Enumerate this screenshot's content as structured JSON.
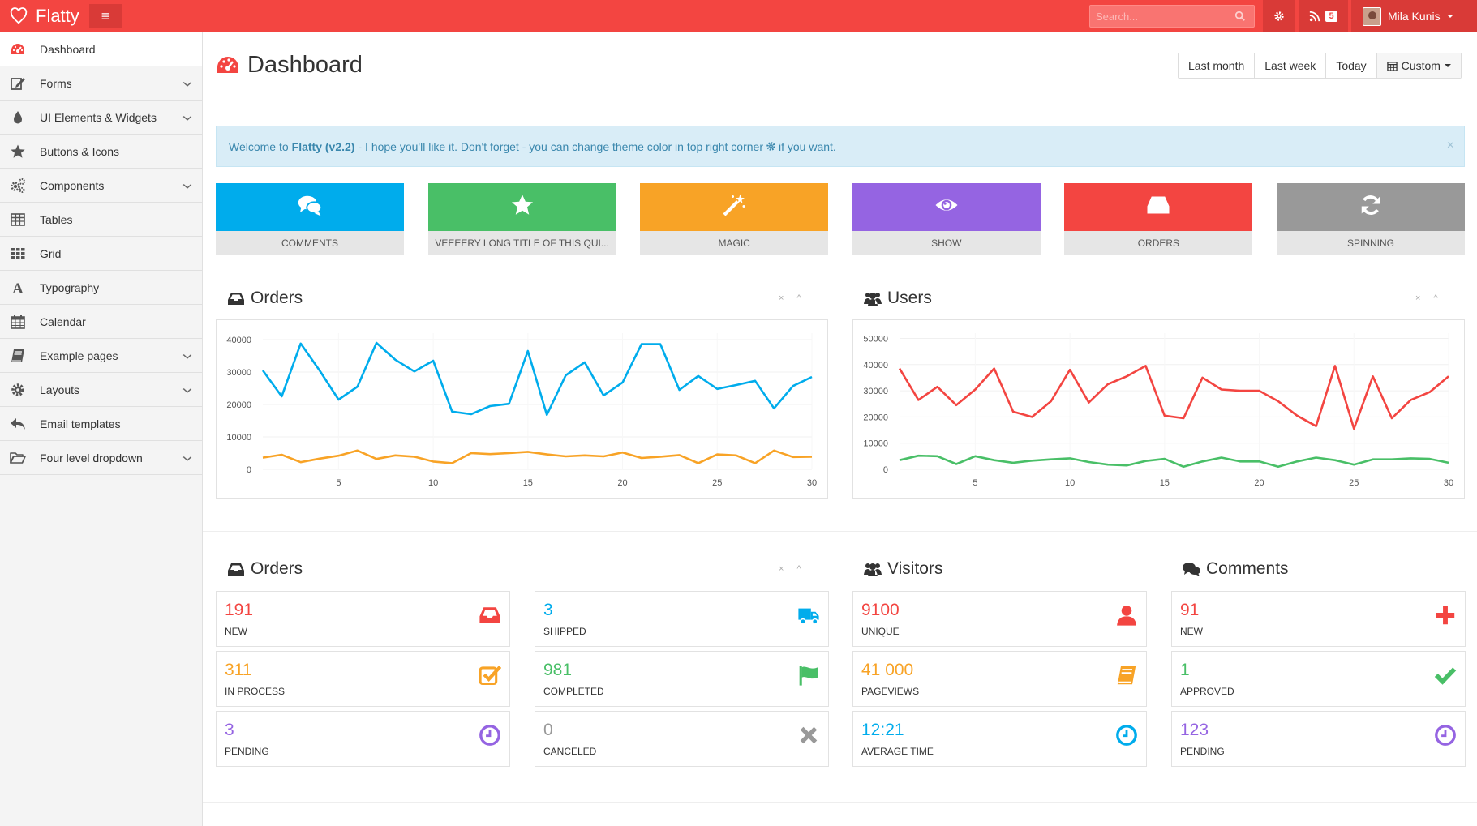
{
  "brand": {
    "name": "Flatty"
  },
  "topbar": {
    "menu_icon": "hamburger-icon",
    "search_placeholder": "Search...",
    "notifications_count": "5",
    "user_name": "Mila Kunis"
  },
  "sidebar": {
    "items": [
      {
        "label": "Dashboard",
        "icon": "dashboard-icon",
        "has_children": false
      },
      {
        "label": "Forms",
        "icon": "edit-icon",
        "has_children": true
      },
      {
        "label": "UI Elements & Widgets",
        "icon": "tint-icon",
        "has_children": true
      },
      {
        "label": "Buttons & Icons",
        "icon": "star-icon",
        "has_children": false
      },
      {
        "label": "Components",
        "icon": "cogs-icon",
        "has_children": true
      },
      {
        "label": "Tables",
        "icon": "table-icon",
        "has_children": false
      },
      {
        "label": "Grid",
        "icon": "grid-icon",
        "has_children": false
      },
      {
        "label": "Typography",
        "icon": "font-icon",
        "has_children": false
      },
      {
        "label": "Calendar",
        "icon": "calendar-icon",
        "has_children": false
      },
      {
        "label": "Example pages",
        "icon": "book-icon",
        "has_children": true
      },
      {
        "label": "Layouts",
        "icon": "cog-icon",
        "has_children": true
      },
      {
        "label": "Email templates",
        "icon": "reply-icon",
        "has_children": false
      },
      {
        "label": "Four level dropdown",
        "icon": "folder-open-icon",
        "has_children": true
      }
    ]
  },
  "header": {
    "title": "Dashboard",
    "ranges": [
      "Last month",
      "Last week",
      "Today",
      "Custom"
    ]
  },
  "alert": {
    "prefix": "Welcome to",
    "product": "Flatty (v2.2)",
    "message": "- I hope you'll like it. Don't forget - you can change theme color in top right corner",
    "suffix": "if you want.",
    "close": "×"
  },
  "tiles": [
    {
      "label": "COMMENTS",
      "color": "#00acec",
      "icon": "comments-icon"
    },
    {
      "label": "VEEEERY LONG TITLE OF THIS QUI...",
      "color": "#49bf67",
      "icon": "star-icon"
    },
    {
      "label": "MAGIC",
      "color": "#f8a326",
      "icon": "magic-icon"
    },
    {
      "label": "SHOW",
      "color": "#9564e2",
      "icon": "eye-icon"
    },
    {
      "label": "ORDERS",
      "color": "#f34541",
      "icon": "inbox-icon"
    },
    {
      "label": "SPINNING",
      "color": "#999999",
      "icon": "refresh-icon"
    }
  ],
  "charts_section": {
    "orders_title": "Orders",
    "users_title": "Users",
    "tools": [
      "×",
      "^"
    ]
  },
  "chart_data": [
    {
      "type": "line",
      "title": "Orders",
      "x": [
        1,
        2,
        3,
        4,
        5,
        6,
        7,
        8,
        9,
        10,
        11,
        12,
        13,
        14,
        15,
        16,
        17,
        18,
        19,
        20,
        21,
        22,
        23,
        24,
        25,
        26,
        27,
        28,
        29,
        30
      ],
      "x_ticks": [
        5,
        10,
        15,
        20,
        25,
        30
      ],
      "y_ticks": [
        0,
        10000,
        20000,
        30000,
        40000
      ],
      "ylim": [
        0,
        42000
      ],
      "series": [
        {
          "color": "#00acec",
          "values": [
            30500,
            22500,
            38800,
            30500,
            21500,
            25500,
            39000,
            33800,
            30200,
            33500,
            17800,
            17000,
            19500,
            20200,
            36500,
            16800,
            29000,
            33000,
            22800,
            26800,
            38600,
            38600,
            24500,
            28800,
            24800,
            26000,
            27300,
            18800,
            25700,
            28500
          ]
        },
        {
          "color": "#f8a326",
          "values": [
            3600,
            4500,
            2200,
            3300,
            4200,
            5800,
            3200,
            4300,
            3900,
            2400,
            1900,
            5000,
            4700,
            5000,
            5400,
            4600,
            4000,
            4300,
            4000,
            5200,
            3500,
            3900,
            4400,
            1900,
            4600,
            4300,
            1900,
            5800,
            3800,
            3900
          ]
        }
      ]
    },
    {
      "type": "line",
      "title": "Users",
      "x": [
        1,
        2,
        3,
        4,
        5,
        6,
        7,
        8,
        9,
        10,
        11,
        12,
        13,
        14,
        15,
        16,
        17,
        18,
        19,
        20,
        21,
        22,
        23,
        24,
        25,
        26,
        27,
        28,
        29,
        30
      ],
      "x_ticks": [
        5,
        10,
        15,
        20,
        25,
        30
      ],
      "y_ticks": [
        0,
        10000,
        20000,
        30000,
        40000,
        50000
      ],
      "ylim": [
        0,
        52000
      ],
      "series": [
        {
          "color": "#f34541",
          "values": [
            38500,
            26500,
            31500,
            24500,
            30500,
            38500,
            22000,
            20000,
            26000,
            38000,
            25500,
            32500,
            35500,
            39500,
            20500,
            19500,
            35000,
            30500,
            30000,
            30000,
            26000,
            20500,
            16500,
            39500,
            15500,
            35500,
            19500,
            26500,
            29500,
            35500
          ]
        },
        {
          "color": "#49bf67",
          "values": [
            3500,
            5200,
            5000,
            2000,
            5000,
            3500,
            2500,
            3300,
            3800,
            4200,
            2800,
            1800,
            1500,
            3200,
            4000,
            1000,
            3000,
            4500,
            3000,
            3000,
            1000,
            3000,
            4500,
            3500,
            1800,
            3800,
            3800,
            4200,
            4000,
            2500
          ]
        }
      ]
    }
  ],
  "stats_section": {
    "orders_title": "Orders",
    "visitors_title": "Visitors",
    "comments_title": "Comments",
    "orders": [
      {
        "value": "191",
        "label": "NEW",
        "color": "#f34541",
        "icon": "inbox-icon"
      },
      {
        "value": "3",
        "label": "SHIPPED",
        "color": "#00acec",
        "icon": "truck-icon"
      },
      {
        "value": "311",
        "label": "IN PROCESS",
        "color": "#f8a326",
        "icon": "check-square-icon"
      },
      {
        "value": "981",
        "label": "COMPLETED",
        "color": "#49bf67",
        "icon": "flag-icon"
      },
      {
        "value": "3",
        "label": "PENDING",
        "color": "#9564e2",
        "icon": "clock-icon"
      },
      {
        "value": "0",
        "label": "CANCELED",
        "color": "#999999",
        "icon": "remove-icon"
      }
    ],
    "visitors": [
      {
        "value": "9100",
        "label": "UNIQUE",
        "color": "#f34541",
        "icon": "user-icon"
      },
      {
        "value": "41 000",
        "label": "PAGEVIEWS",
        "color": "#f8a326",
        "icon": "book-icon"
      },
      {
        "value": "12:21",
        "label": "AVERAGE TIME",
        "color": "#00acec",
        "icon": "clock-icon"
      }
    ],
    "comments": [
      {
        "value": "91",
        "label": "NEW",
        "color": "#f34541",
        "icon": "plus-icon"
      },
      {
        "value": "1",
        "label": "APPROVED",
        "color": "#49bf67",
        "icon": "ok-icon"
      },
      {
        "value": "123",
        "label": "PENDING",
        "color": "#9564e2",
        "icon": "clock-icon"
      }
    ]
  }
}
